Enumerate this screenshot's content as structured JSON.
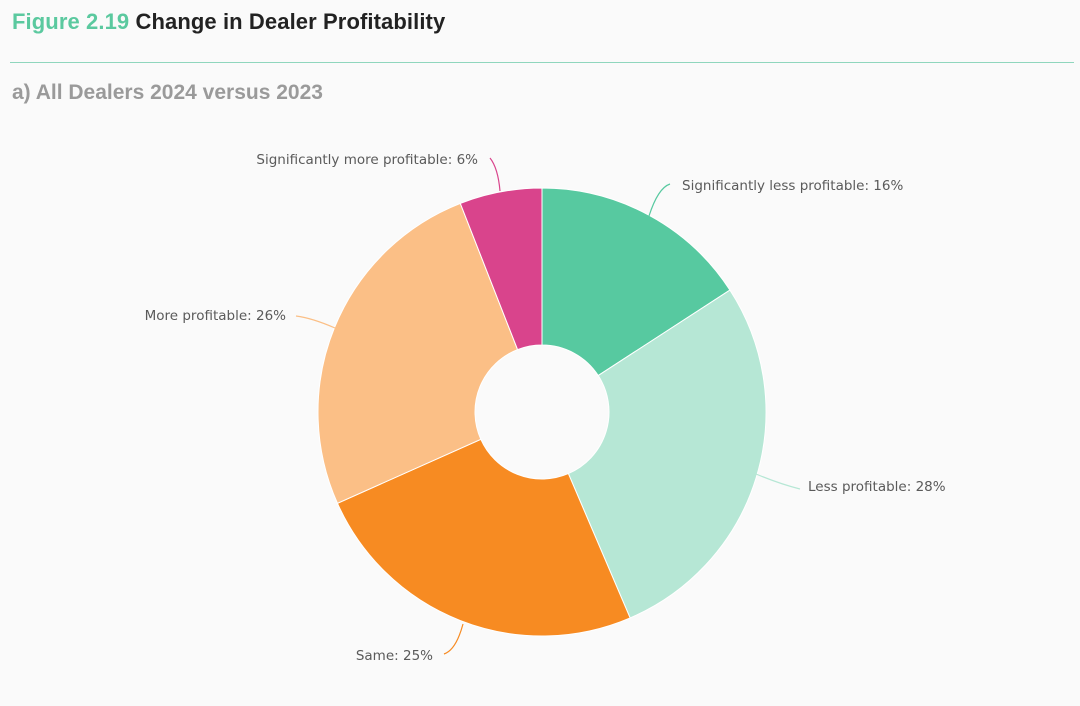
{
  "header": {
    "figure_number": "Figure 2.19",
    "figure_title": "Change in Dealer Profitability"
  },
  "subtitle": "a) All Dealers 2024 versus 2023",
  "chart_data": {
    "type": "pie",
    "donut": true,
    "title": "a) All Dealers 2024 versus 2023",
    "legend": "none",
    "slices": [
      {
        "label": "Significantly less profitable",
        "value": 16,
        "color": "#57c9a0",
        "text": "Significantly less profitable: 16%"
      },
      {
        "label": "Less profitable",
        "value": 28,
        "color": "#b6e7d5",
        "text": "Less profitable: 28%"
      },
      {
        "label": "Same",
        "value": 25,
        "color": "#f78b22",
        "text": "Same: 25%"
      },
      {
        "label": "More profitable",
        "value": 26,
        "color": "#fbbf86",
        "text": "More profitable: 26%"
      },
      {
        "label": "Significantly more profitable",
        "value": 6,
        "color": "#d9448c",
        "text": "Significantly more profitable: 6%"
      }
    ]
  }
}
